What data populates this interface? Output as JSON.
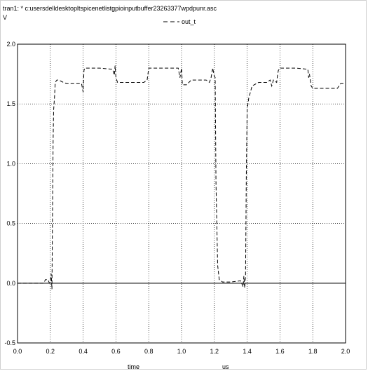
{
  "header": {
    "title": "tran1: * c:usersdelldesktopltspicenetlistgpioinputbuffer23263377wpdpunr.asc",
    "y_unit": "V"
  },
  "legend": {
    "label": "out_t"
  },
  "chart_data": {
    "type": "line",
    "title": "tran1: * c:usersdelldesktopltspicenetlistgpioinputbuffer23263377wpdpunr.asc",
    "xlabel": "time",
    "xunit": "us",
    "ylabel": "V",
    "xlim": [
      0.0,
      2.0
    ],
    "ylim": [
      -0.5,
      2.0
    ],
    "grid": true,
    "legend_position": "top",
    "x_ticks": [
      "0.0",
      "0.2",
      "0.4",
      "0.6",
      "0.8",
      "1.0",
      "1.2",
      "1.4",
      "1.6",
      "1.8",
      "2.0"
    ],
    "y_ticks": [
      "-0.5",
      "0.0",
      "0.5",
      "1.0",
      "1.5",
      "2.0"
    ],
    "series": [
      {
        "name": "out_t",
        "style": "dashed",
        "color": "#000000",
        "x": [
          0.0,
          0.16,
          0.17,
          0.185,
          0.195,
          0.2,
          0.205,
          0.21,
          0.213,
          0.217,
          0.22,
          0.225,
          0.23,
          0.24,
          0.25,
          0.28,
          0.3,
          0.32,
          0.39,
          0.4,
          0.405,
          0.41,
          0.42,
          0.5,
          0.58,
          0.59,
          0.595,
          0.6,
          0.61,
          0.7,
          0.77,
          0.78,
          0.79,
          0.8,
          0.98,
          0.99,
          1.0,
          1.005,
          1.01,
          1.03,
          1.06,
          1.1,
          1.15,
          1.17,
          1.18,
          1.19,
          1.2,
          1.205,
          1.21,
          1.22,
          1.23,
          1.24,
          1.25,
          1.3,
          1.36,
          1.375,
          1.38,
          1.385,
          1.39,
          1.395,
          1.4,
          1.41,
          1.42,
          1.43,
          1.47,
          1.52,
          1.54,
          1.55,
          1.56,
          1.58,
          1.585,
          1.59,
          1.6,
          1.61,
          1.7,
          1.77,
          1.775,
          1.78,
          1.785,
          1.79,
          1.8,
          1.85,
          1.9,
          1.95,
          1.97,
          2.0
        ],
        "y": [
          0.0,
          0.0,
          0.03,
          0.03,
          0.0,
          0.01,
          0.08,
          -0.05,
          0.5,
          1.2,
          1.45,
          1.55,
          1.68,
          1.7,
          1.7,
          1.68,
          1.67,
          1.67,
          1.67,
          1.6,
          1.78,
          1.8,
          1.8,
          1.8,
          1.79,
          1.74,
          1.82,
          1.72,
          1.68,
          1.68,
          1.68,
          1.69,
          1.7,
          1.8,
          1.8,
          1.72,
          1.8,
          1.66,
          1.66,
          1.66,
          1.7,
          1.7,
          1.7,
          1.68,
          1.72,
          1.8,
          1.73,
          1.72,
          0.85,
          0.15,
          0.03,
          0.02,
          0.01,
          0.01,
          0.02,
          -0.03,
          0.06,
          -0.04,
          0.06,
          0.9,
          1.45,
          1.55,
          1.6,
          1.65,
          1.68,
          1.68,
          1.7,
          1.65,
          1.7,
          1.68,
          1.74,
          1.78,
          1.8,
          1.8,
          1.8,
          1.79,
          1.72,
          1.75,
          1.7,
          1.65,
          1.63,
          1.63,
          1.63,
          1.63,
          1.67,
          1.67
        ]
      }
    ]
  }
}
